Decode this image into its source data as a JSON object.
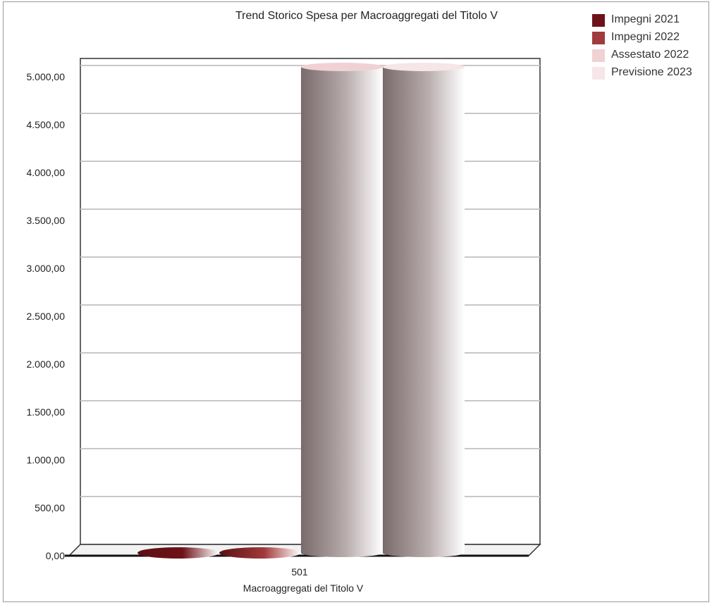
{
  "chart_data": {
    "type": "bar",
    "style": "3d-cylinder",
    "title": "Trend Storico Spesa per Macroaggregati del Titolo V",
    "xlabel": "Macroaggregati del Titolo V",
    "ylabel": "",
    "categories": [
      "501"
    ],
    "ylim": [
      0,
      5000
    ],
    "yticks": [
      0,
      500,
      1000,
      1500,
      2000,
      2500,
      3000,
      3500,
      4000,
      4500,
      5000
    ],
    "ytick_labels": [
      "0,00",
      "500,00",
      "1.000,00",
      "1.500,00",
      "2.000,00",
      "2.500,00",
      "3.000,00",
      "3.500,00",
      "4.000,00",
      "4.500,00",
      "5.000,00"
    ],
    "grid": true,
    "legend_position": "top-right",
    "series": [
      {
        "name": "Impegni 2021",
        "color": "#6e1219",
        "values": [
          0
        ]
      },
      {
        "name": "Impegni 2022",
        "color": "#a13a3c",
        "values": [
          0
        ]
      },
      {
        "name": "Assestato 2022",
        "color": "#f0d2d4",
        "values": [
          5000
        ]
      },
      {
        "name": "Previsione 2023",
        "color": "#f6e6e8",
        "values": [
          5000
        ]
      }
    ]
  }
}
